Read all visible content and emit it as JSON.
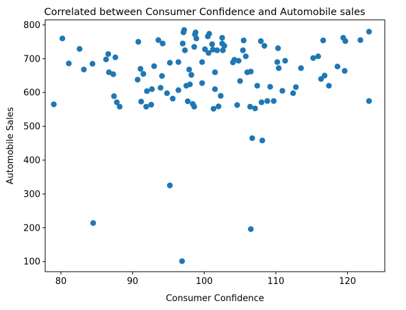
{
  "chart_data": {
    "type": "scatter",
    "title": "Correlated between Consumer Confidence and Automobile sales",
    "xlabel": "Consumer Confidence",
    "ylabel": "Automobile Sales",
    "xlim": [
      77.8,
      125.2
    ],
    "ylim": [
      70,
      815
    ],
    "xticks": [
      80,
      90,
      100,
      110,
      120
    ],
    "yticks": [
      100,
      200,
      300,
      400,
      500,
      600,
      700,
      800
    ],
    "grid": false,
    "point_color": "#1f77b4",
    "points": [
      [
        79,
        565
      ],
      [
        80.2,
        760
      ],
      [
        81.1,
        686
      ],
      [
        82.6,
        729
      ],
      [
        83.2,
        668
      ],
      [
        84.4,
        685
      ],
      [
        84.5,
        214
      ],
      [
        86.3,
        698
      ],
      [
        86.6,
        714
      ],
      [
        86.7,
        660
      ],
      [
        87.3,
        654
      ],
      [
        87.4,
        589
      ],
      [
        87.6,
        704
      ],
      [
        87.8,
        571
      ],
      [
        88.2,
        558
      ],
      [
        90.7,
        638
      ],
      [
        90.8,
        750
      ],
      [
        91.1,
        670
      ],
      [
        91.2,
        573
      ],
      [
        91.5,
        655
      ],
      [
        91.9,
        558
      ],
      [
        92,
        604
      ],
      [
        92.6,
        564
      ],
      [
        92.7,
        610
      ],
      [
        93,
        678
      ],
      [
        93.6,
        755
      ],
      [
        93.9,
        614
      ],
      [
        94.1,
        649
      ],
      [
        94.2,
        745
      ],
      [
        94.8,
        598
      ],
      [
        95.2,
        325
      ],
      [
        95.2,
        688
      ],
      [
        95.6,
        582
      ],
      [
        96.4,
        607
      ],
      [
        96.4,
        690
      ],
      [
        96.9,
        101
      ],
      [
        97,
        745
      ],
      [
        97.1,
        778
      ],
      [
        97.2,
        785
      ],
      [
        97.3,
        725
      ],
      [
        97.5,
        620
      ],
      [
        97.7,
        574
      ],
      [
        97.9,
        668
      ],
      [
        98,
        624
      ],
      [
        98.2,
        652
      ],
      [
        98.4,
        566
      ],
      [
        98.6,
        735
      ],
      [
        98.6,
        558
      ],
      [
        98.7,
        772
      ],
      [
        98.8,
        778
      ],
      [
        98.9,
        760
      ],
      [
        99.7,
        628
      ],
      [
        99.7,
        690
      ],
      [
        100.1,
        728
      ],
      [
        100.5,
        766
      ],
      [
        100.6,
        717
      ],
      [
        100.7,
        774
      ],
      [
        101.1,
        743
      ],
      [
        101.2,
        727
      ],
      [
        101.3,
        552
      ],
      [
        101.5,
        610
      ],
      [
        101.5,
        660
      ],
      [
        101.8,
        725
      ],
      [
        102,
        559
      ],
      [
        102.3,
        590
      ],
      [
        102.5,
        762
      ],
      [
        102.5,
        745
      ],
      [
        102.6,
        725
      ],
      [
        102.8,
        738
      ],
      [
        104,
        689
      ],
      [
        104.2,
        697
      ],
      [
        104.6,
        563
      ],
      [
        104.8,
        694
      ],
      [
        105,
        634
      ],
      [
        105.4,
        725
      ],
      [
        105.5,
        754
      ],
      [
        105.8,
        707
      ],
      [
        106,
        660
      ],
      [
        106.4,
        558
      ],
      [
        106.5,
        196
      ],
      [
        106.5,
        662
      ],
      [
        106.7,
        465
      ],
      [
        107.1,
        553
      ],
      [
        107.4,
        620
      ],
      [
        107.9,
        752
      ],
      [
        108,
        571
      ],
      [
        108.1,
        458
      ],
      [
        108.4,
        738
      ],
      [
        108.8,
        575
      ],
      [
        109.2,
        617
      ],
      [
        109.7,
        575
      ],
      [
        110.2,
        690
      ],
      [
        110.3,
        731
      ],
      [
        110.4,
        672
      ],
      [
        110.9,
        605
      ],
      [
        111.3,
        694
      ],
      [
        112.4,
        598
      ],
      [
        112.8,
        616
      ],
      [
        113.5,
        672
      ],
      [
        115.2,
        702
      ],
      [
        115.9,
        707
      ],
      [
        116.3,
        640
      ],
      [
        116.6,
        754
      ],
      [
        116.8,
        650
      ],
      [
        117.4,
        620
      ],
      [
        118.6,
        677
      ],
      [
        119.4,
        762
      ],
      [
        119.6,
        664
      ],
      [
        119.7,
        752
      ],
      [
        121.8,
        755
      ],
      [
        123,
        780
      ],
      [
        123,
        575
      ]
    ]
  }
}
